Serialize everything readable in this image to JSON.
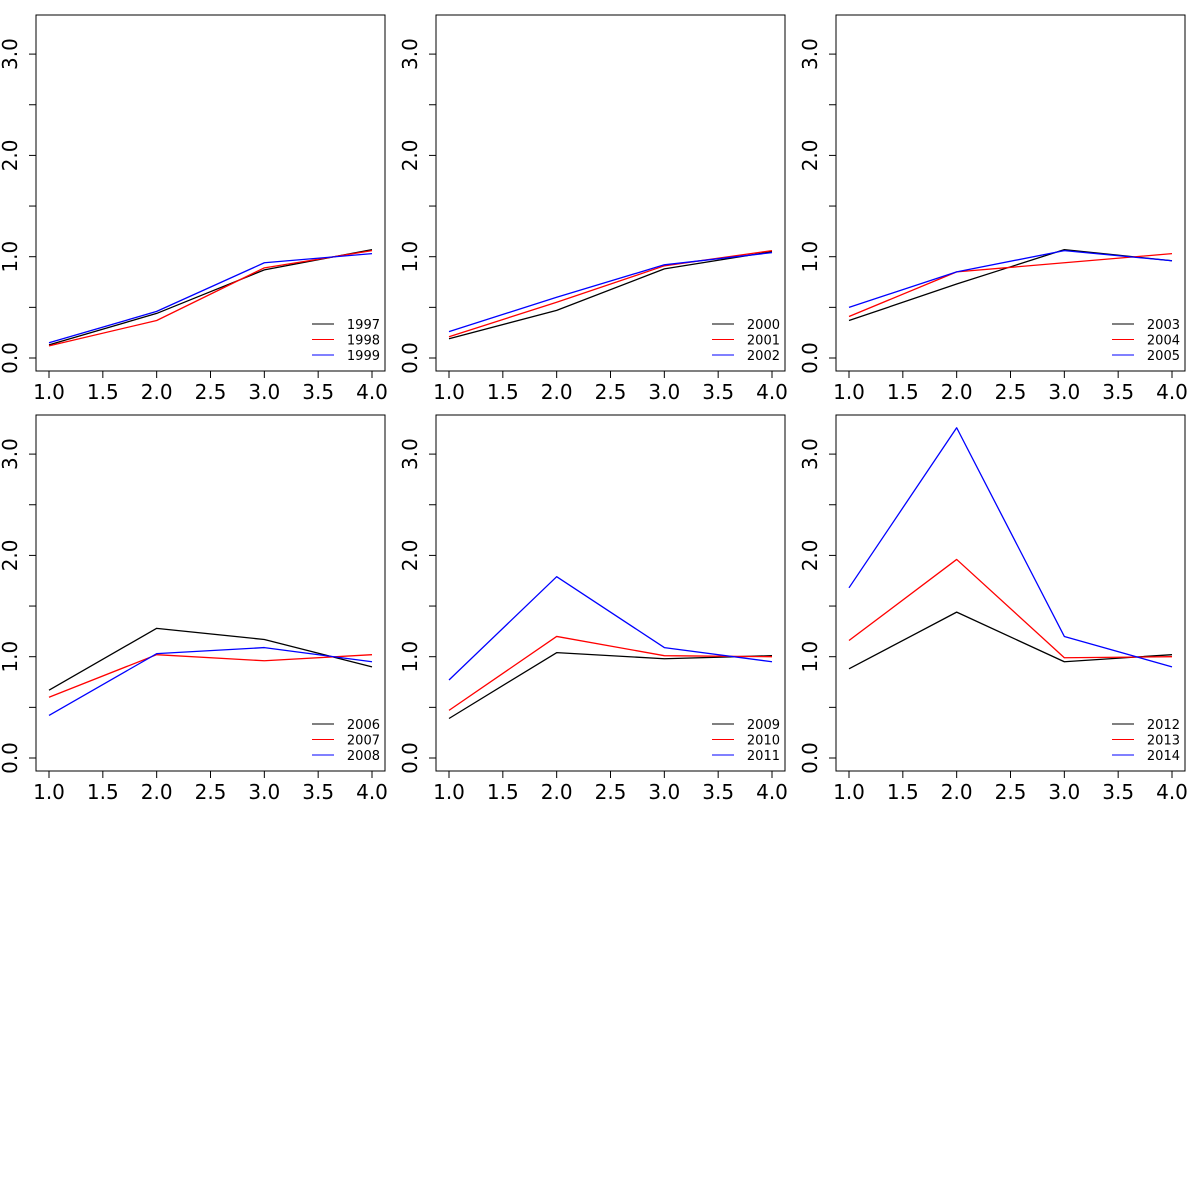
{
  "colors": {
    "series_1": "#000000",
    "series_2": "#ff0000",
    "series_3": "#0000ff",
    "frame": "#000000",
    "background": "#ffffff"
  },
  "chart_data": [
    {
      "type": "line",
      "x": [
        1,
        2,
        3,
        4
      ],
      "xlim": [
        1,
        4
      ],
      "ylim": [
        0,
        3.3
      ],
      "xticks": [
        "1.0",
        "1.5",
        "2.0",
        "2.5",
        "3.0",
        "3.5",
        "4.0"
      ],
      "xtick_values": [
        1,
        1.5,
        2,
        2.5,
        3,
        3.5,
        4
      ],
      "yticks": [
        "0.0",
        "1.0",
        "2.0",
        "3.0"
      ],
      "ytick_values": [
        0,
        1,
        2,
        3
      ],
      "ytick_minor_values": [
        0.5,
        1.5,
        2.5
      ],
      "legend_position": "bottom-right",
      "series": [
        {
          "name": "1997",
          "color": "#000000",
          "values": [
            0.13,
            0.44,
            0.87,
            1.07
          ]
        },
        {
          "name": "1998",
          "color": "#ff0000",
          "values": [
            0.12,
            0.37,
            0.89,
            1.06
          ]
        },
        {
          "name": "1999",
          "color": "#0000ff",
          "values": [
            0.15,
            0.46,
            0.94,
            1.03
          ]
        }
      ]
    },
    {
      "type": "line",
      "x": [
        1,
        2,
        3,
        4
      ],
      "xlim": [
        1,
        4
      ],
      "ylim": [
        0,
        3.3
      ],
      "xticks": [
        "1.0",
        "1.5",
        "2.0",
        "2.5",
        "3.0",
        "3.5",
        "4.0"
      ],
      "xtick_values": [
        1,
        1.5,
        2,
        2.5,
        3,
        3.5,
        4
      ],
      "yticks": [
        "0.0",
        "1.0",
        "2.0",
        "3.0"
      ],
      "ytick_values": [
        0,
        1,
        2,
        3
      ],
      "ytick_minor_values": [
        0.5,
        1.5,
        2.5
      ],
      "legend_position": "bottom-right",
      "series": [
        {
          "name": "2000",
          "color": "#000000",
          "values": [
            0.19,
            0.47,
            0.88,
            1.05
          ]
        },
        {
          "name": "2001",
          "color": "#ff0000",
          "values": [
            0.21,
            0.55,
            0.91,
            1.06
          ]
        },
        {
          "name": "2002",
          "color": "#0000ff",
          "values": [
            0.26,
            0.6,
            0.92,
            1.04
          ]
        }
      ]
    },
    {
      "type": "line",
      "x": [
        1,
        2,
        3,
        4
      ],
      "xlim": [
        1,
        4
      ],
      "ylim": [
        0,
        3.3
      ],
      "xticks": [
        "1.0",
        "1.5",
        "2.0",
        "2.5",
        "3.0",
        "3.5",
        "4.0"
      ],
      "xtick_values": [
        1,
        1.5,
        2,
        2.5,
        3,
        3.5,
        4
      ],
      "yticks": [
        "0.0",
        "1.0",
        "2.0",
        "3.0"
      ],
      "ytick_values": [
        0,
        1,
        2,
        3
      ],
      "ytick_minor_values": [
        0.5,
        1.5,
        2.5
      ],
      "legend_position": "bottom-right",
      "series": [
        {
          "name": "2003",
          "color": "#000000",
          "values": [
            0.37,
            0.73,
            1.07,
            0.96
          ]
        },
        {
          "name": "2004",
          "color": "#ff0000",
          "values": [
            0.41,
            0.85,
            0.94,
            1.03
          ]
        },
        {
          "name": "2005",
          "color": "#0000ff",
          "values": [
            0.5,
            0.85,
            1.06,
            0.96
          ]
        }
      ]
    },
    {
      "type": "line",
      "x": [
        1,
        2,
        3,
        4
      ],
      "xlim": [
        1,
        4
      ],
      "ylim": [
        0,
        3.3
      ],
      "xticks": [
        "1.0",
        "1.5",
        "2.0",
        "2.5",
        "3.0",
        "3.5",
        "4.0"
      ],
      "xtick_values": [
        1,
        1.5,
        2,
        2.5,
        3,
        3.5,
        4
      ],
      "yticks": [
        "0.0",
        "1.0",
        "2.0",
        "3.0"
      ],
      "ytick_values": [
        0,
        1,
        2,
        3
      ],
      "ytick_minor_values": [
        0.5,
        1.5,
        2.5
      ],
      "legend_position": "bottom-right",
      "series": [
        {
          "name": "2006",
          "color": "#000000",
          "values": [
            0.67,
            1.28,
            1.17,
            0.9
          ]
        },
        {
          "name": "2007",
          "color": "#ff0000",
          "values": [
            0.6,
            1.02,
            0.96,
            1.02
          ]
        },
        {
          "name": "2008",
          "color": "#0000ff",
          "values": [
            0.42,
            1.03,
            1.09,
            0.95
          ]
        }
      ]
    },
    {
      "type": "line",
      "x": [
        1,
        2,
        3,
        4
      ],
      "xlim": [
        1,
        4
      ],
      "ylim": [
        0,
        3.3
      ],
      "xticks": [
        "1.0",
        "1.5",
        "2.0",
        "2.5",
        "3.0",
        "3.5",
        "4.0"
      ],
      "xtick_values": [
        1,
        1.5,
        2,
        2.5,
        3,
        3.5,
        4
      ],
      "yticks": [
        "0.0",
        "1.0",
        "2.0",
        "3.0"
      ],
      "ytick_values": [
        0,
        1,
        2,
        3
      ],
      "ytick_minor_values": [
        0.5,
        1.5,
        2.5
      ],
      "legend_position": "bottom-right",
      "series": [
        {
          "name": "2009",
          "color": "#000000",
          "values": [
            0.39,
            1.04,
            0.98,
            1.01
          ]
        },
        {
          "name": "2010",
          "color": "#ff0000",
          "values": [
            0.47,
            1.2,
            1.01,
            1.0
          ]
        },
        {
          "name": "2011",
          "color": "#0000ff",
          "values": [
            0.77,
            1.79,
            1.09,
            0.95
          ]
        }
      ]
    },
    {
      "type": "line",
      "x": [
        1,
        2,
        3,
        4
      ],
      "xlim": [
        1,
        4
      ],
      "ylim": [
        0,
        3.3
      ],
      "xticks": [
        "1.0",
        "1.5",
        "2.0",
        "2.5",
        "3.0",
        "3.5",
        "4.0"
      ],
      "xtick_values": [
        1,
        1.5,
        2,
        2.5,
        3,
        3.5,
        4
      ],
      "yticks": [
        "0.0",
        "1.0",
        "2.0",
        "3.0"
      ],
      "ytick_values": [
        0,
        1,
        2,
        3
      ],
      "ytick_minor_values": [
        0.5,
        1.5,
        2.5
      ],
      "legend_position": "bottom-right",
      "series": [
        {
          "name": "2012",
          "color": "#000000",
          "values": [
            0.88,
            1.44,
            0.95,
            1.02
          ]
        },
        {
          "name": "2013",
          "color": "#ff0000",
          "values": [
            1.16,
            1.96,
            0.99,
            1.0
          ]
        },
        {
          "name": "2014",
          "color": "#0000ff",
          "values": [
            1.68,
            3.26,
            1.2,
            0.9
          ]
        }
      ]
    }
  ]
}
